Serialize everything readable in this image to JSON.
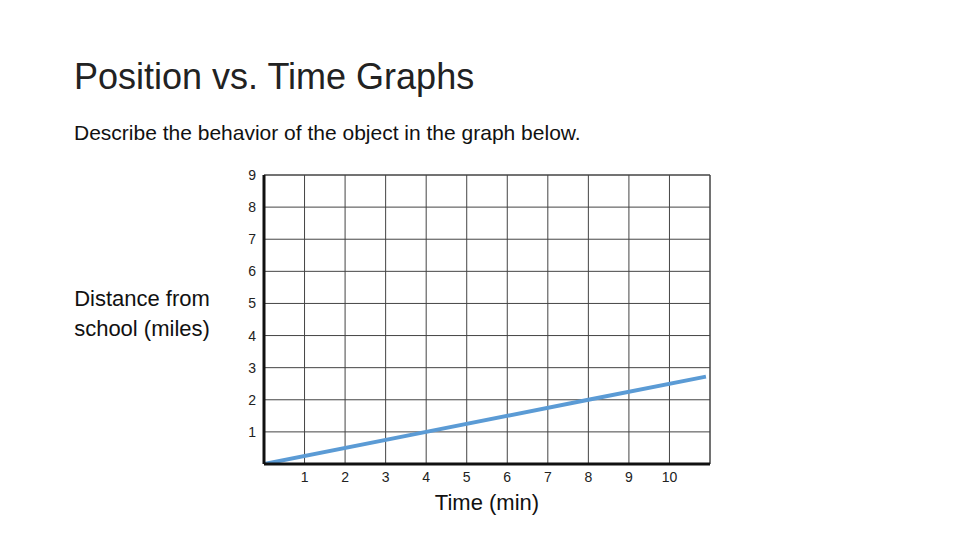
{
  "chart_data": {
    "type": "line",
    "title": "Position vs. Time Graphs",
    "subtitle": "Describe the behavior of the object in the graph below.",
    "x_label": "Time (min)",
    "y_label": "Distance from school (miles)",
    "x": [
      0,
      4,
      8,
      10.9
    ],
    "values": [
      0,
      1,
      2,
      2.72
    ],
    "color": "#5b9bd5",
    "xlim": [
      0,
      11
    ],
    "xticks": [
      1,
      2,
      3,
      4,
      5,
      6,
      7,
      8,
      9,
      10
    ],
    "ylim": [
      0,
      9
    ],
    "yticks": [
      1,
      2,
      3,
      4,
      5,
      6,
      7,
      8,
      9
    ],
    "grid": true
  }
}
